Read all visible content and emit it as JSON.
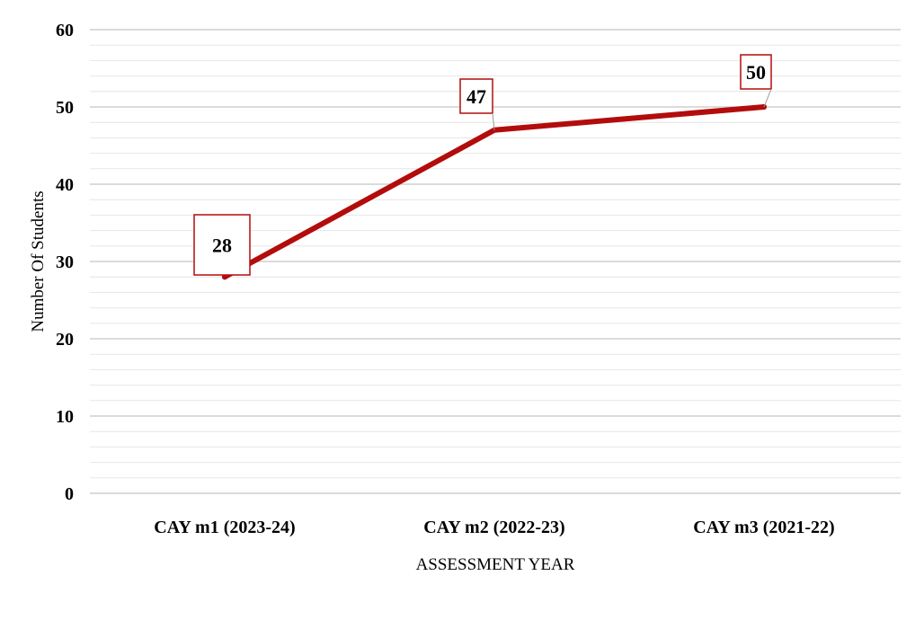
{
  "chart_data": {
    "type": "line",
    "categories": [
      "CAY m1 (2023-24)",
      "CAY m2 (2022-23)",
      "CAY m3 (2021-22)"
    ],
    "series": [
      {
        "values": [
          28,
          47,
          50
        ]
      }
    ],
    "data_labels": [
      "28",
      "47",
      "50"
    ],
    "title": "",
    "xlabel": "ASSESSMENT  YEAR",
    "ylabel": "Number  Of  Students",
    "ylim": [
      0,
      60
    ],
    "yticks": [
      0,
      10,
      20,
      30,
      40,
      50,
      60
    ],
    "ytick_labels": [
      "0",
      "10",
      "20",
      "30",
      "40",
      "50",
      "60"
    ],
    "minor_gridlines_per_major": 5,
    "grid": true,
    "legend": "none",
    "line_color": "#b30c0c",
    "label_box_color": "#b30c0c",
    "grid_color": "#d9d9d9"
  }
}
